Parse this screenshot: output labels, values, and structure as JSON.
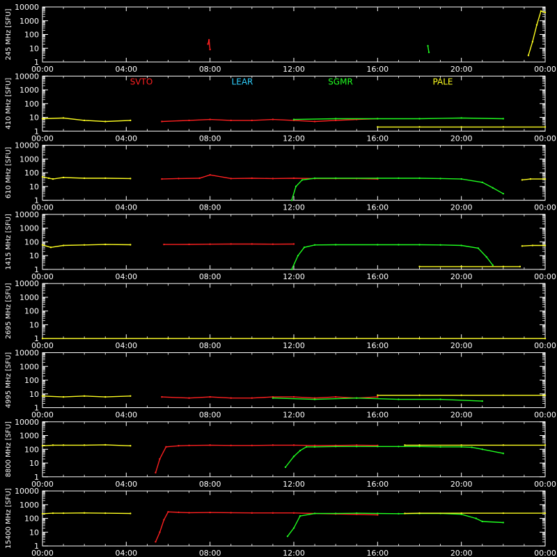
{
  "chart_data": {
    "type": "line",
    "x_ticks": [
      "00:00",
      "04:00",
      "08:00",
      "12:00",
      "16:00",
      "20:00",
      "00:00"
    ],
    "y_ticks": [
      "1",
      "10",
      "100",
      "1000",
      "10000"
    ],
    "y_scale": "log",
    "ylim": [
      1,
      10000
    ],
    "grid": false,
    "legend": {
      "placement": "top, inside panel 410 MHz",
      "entries": [
        {
          "name": "SVTO",
          "color": "#ff2020"
        },
        {
          "name": "LEAR",
          "color": "#30d0ff"
        },
        {
          "name": "SGMR",
          "color": "#20ff20"
        },
        {
          "name": "PALE",
          "color": "#ffff20"
        }
      ]
    },
    "panels": [
      {
        "ylabel": "245 MHz [SFU]",
        "series": [
          {
            "name": "PALE",
            "color": "#ffff20",
            "x": [
              23.2,
              23.4,
              23.6,
              23.8,
              24.0
            ],
            "y": [
              3,
              30,
              500,
              5000,
              4000
            ]
          },
          {
            "name": "SVTO",
            "color": "#ff2020",
            "x": [
              7.9,
              7.95,
              8.0
            ],
            "y": [
              20,
              40,
              8
            ]
          },
          {
            "name": "SGMR",
            "color": "#20ff20",
            "x": [
              18.4,
              18.45
            ],
            "y": [
              15,
              5
            ]
          }
        ]
      },
      {
        "ylabel": "410 MHz [SFU]",
        "series": [
          {
            "name": "PALE",
            "color": "#ffff20",
            "x": [
              0.0,
              1.0,
              2.0,
              3.0,
              4.2
            ],
            "y": [
              8,
              9,
              6,
              5,
              6
            ]
          },
          {
            "name": "SVTO",
            "color": "#ff2020",
            "x": [
              5.7,
              7.0,
              8.0,
              9.0,
              10.0,
              11.0,
              12.0,
              13.0,
              14.0,
              15.0,
              16.0
            ],
            "y": [
              5,
              6,
              7,
              6,
              6,
              7,
              6,
              5,
              6,
              7,
              8
            ]
          },
          {
            "name": "SGMR",
            "color": "#20ff20",
            "x": [
              12.0,
              14.0,
              16.0,
              18.0,
              20.0,
              22.0
            ],
            "y": [
              7,
              8,
              8,
              8,
              9,
              8
            ]
          },
          {
            "name": "PALE",
            "color": "#ffff20",
            "x": [
              16.0,
              18.0,
              20.0,
              22.0,
              24.0
            ],
            "y": [
              2,
              2,
              2,
              2,
              2
            ]
          }
        ]
      },
      {
        "ylabel": "610 MHz [SFU]",
        "series": [
          {
            "name": "PALE",
            "color": "#ffff20",
            "x": [
              0.0,
              0.3,
              0.5,
              1.0,
              2.0,
              3.0,
              4.2
            ],
            "y": [
              50,
              40,
              35,
              45,
              40,
              40,
              38
            ]
          },
          {
            "name": "SVTO",
            "color": "#ff2020",
            "x": [
              5.7,
              6.5,
              7.5,
              8.0,
              9.0,
              10.0,
              11.0,
              12.0,
              13.0,
              14.0,
              15.0,
              16.0
            ],
            "y": [
              35,
              38,
              40,
              70,
              38,
              40,
              38,
              40,
              38,
              38,
              38,
              35
            ]
          },
          {
            "name": "SGMR",
            "color": "#20ff20",
            "x": [
              11.9,
              12.1,
              12.4,
              13.0,
              14.0,
              16.0,
              17.0,
              18.0,
              19.0,
              20.0,
              21.0,
              21.5,
              22.0
            ],
            "y": [
              1,
              10,
              30,
              40,
              40,
              40,
              40,
              40,
              38,
              35,
              20,
              8,
              3
            ]
          },
          {
            "name": "PALE",
            "color": "#ffff20",
            "x": [
              22.9,
              23.3,
              24.0
            ],
            "y": [
              30,
              35,
              35
            ]
          }
        ]
      },
      {
        "ylabel": "1415 MHz [SFU]",
        "series": [
          {
            "name": "PALE",
            "color": "#ffff20",
            "x": [
              0.0,
              0.4,
              1.0,
              2.0,
              3.0,
              4.2
            ],
            "y": [
              60,
              40,
              55,
              60,
              65,
              62
            ]
          },
          {
            "name": "SVTO",
            "color": "#ff2020",
            "x": [
              5.8,
              7.0,
              8.0,
              9.0,
              10.0,
              11.0,
              12.0
            ],
            "y": [
              65,
              66,
              68,
              70,
              70,
              68,
              70
            ]
          },
          {
            "name": "SGMR",
            "color": "#20ff20",
            "x": [
              11.9,
              12.2,
              12.5,
              13.0,
              14.0,
              16.0,
              17.0,
              18.0,
              19.0,
              20.0,
              20.8,
              21.2,
              21.5
            ],
            "y": [
              1,
              10,
              40,
              60,
              62,
              62,
              62,
              62,
              60,
              55,
              35,
              8,
              2
            ]
          },
          {
            "name": "PALE",
            "color": "#ffff20",
            "x": [
              18.0,
              20.0,
              22.0,
              22.8
            ],
            "y": [
              1.6,
              1.6,
              1.6,
              1.6
            ]
          },
          {
            "name": "PALE",
            "color": "#ffff20",
            "x": [
              22.9,
              23.4,
              24.0
            ],
            "y": [
              50,
              55,
              55
            ]
          }
        ]
      },
      {
        "ylabel": "2695 MHz [SFU]",
        "series": [
          {
            "name": "PALE",
            "color": "#ffff20",
            "x": [
              0.0,
              6.0,
              12.0,
              18.0,
              24.0
            ],
            "y": [
              1,
              1,
              1,
              1,
              1
            ]
          }
        ]
      },
      {
        "ylabel": "4995 MHz [SFU]",
        "series": [
          {
            "name": "PALE",
            "color": "#ffff20",
            "x": [
              0.0,
              1.0,
              2.0,
              3.0,
              4.2
            ],
            "y": [
              7,
              6,
              7,
              6,
              7
            ]
          },
          {
            "name": "SVTO",
            "color": "#ff2020",
            "x": [
              5.7,
              7.0,
              8.0,
              9.0,
              10.0,
              11.0,
              12.0,
              13.0,
              14.0,
              15.0,
              16.0
            ],
            "y": [
              6,
              5,
              6,
              5,
              5,
              6,
              6,
              5,
              6,
              5,
              6
            ]
          },
          {
            "name": "SGMR",
            "color": "#20ff20",
            "x": [
              11.0,
              13.0,
              15.0,
              17.0,
              19.0,
              21.0
            ],
            "y": [
              5,
              4,
              5,
              4,
              4,
              3
            ]
          },
          {
            "name": "PALE",
            "color": "#ffff20",
            "x": [
              16.0,
              18.0,
              20.0,
              22.0,
              24.0
            ],
            "y": [
              8,
              8,
              8,
              8,
              8
            ]
          }
        ]
      },
      {
        "ylabel": "8800 MHz [SFU]",
        "series": [
          {
            "name": "PALE",
            "color": "#ffff20",
            "x": [
              0.0,
              0.5,
              1.0,
              2.0,
              3.0,
              4.2
            ],
            "y": [
              180,
              200,
              200,
              200,
              210,
              180
            ]
          },
          {
            "name": "SVTO",
            "color": "#ff2020",
            "x": [
              5.4,
              5.6,
              5.9,
              6.5,
              7.0,
              8.0,
              9.0,
              10.0,
              11.0,
              12.0,
              13.0,
              14.0,
              15.0,
              16.0
            ],
            "y": [
              2,
              20,
              150,
              180,
              190,
              200,
              190,
              190,
              200,
              200,
              190,
              190,
              200,
              190
            ]
          },
          {
            "name": "SGMR",
            "color": "#20ff20",
            "x": [
              11.6,
              12.0,
              12.3,
              12.6,
              13.0,
              14.0,
              15.0,
              16.0,
              17.0,
              18.0,
              19.0,
              20.0,
              20.5,
              21.0,
              22.0
            ],
            "y": [
              5,
              30,
              80,
              150,
              150,
              160,
              160,
              160,
              160,
              160,
              150,
              150,
              140,
              100,
              50
            ]
          },
          {
            "name": "PALE",
            "color": "#ffff20",
            "x": [
              17.3,
              18.0,
              20.0,
              22.0,
              24.0
            ],
            "y": [
              200,
              200,
              200,
              200,
              200
            ]
          }
        ]
      },
      {
        "ylabel": "15400 MHz [SFU]",
        "series": [
          {
            "name": "PALE",
            "color": "#ffff20",
            "x": [
              0.0,
              0.5,
              1.0,
              2.0,
              3.0,
              4.2
            ],
            "y": [
              220,
              240,
              240,
              250,
              240,
              230
            ]
          },
          {
            "name": "SVTO",
            "color": "#ff2020",
            "x": [
              5.4,
              5.6,
              5.8,
              6.0,
              6.5,
              7.0,
              8.0,
              9.0,
              10.0,
              11.0,
              12.0,
              13.0,
              14.0,
              15.0,
              16.0
            ],
            "y": [
              2,
              10,
              80,
              300,
              280,
              260,
              270,
              260,
              250,
              250,
              250,
              230,
              210,
              200,
              180
            ]
          },
          {
            "name": "SGMR",
            "color": "#20ff20",
            "x": [
              11.7,
              12.0,
              12.3,
              13.0,
              14.0,
              15.0,
              16.0,
              17.0,
              18.0,
              19.0,
              20.0,
              20.7,
              21.0,
              22.0
            ],
            "y": [
              5,
              20,
              150,
              230,
              230,
              240,
              230,
              220,
              230,
              230,
              200,
              100,
              60,
              50
            ]
          },
          {
            "name": "PALE",
            "color": "#ffff20",
            "x": [
              17.3,
              18.0,
              20.0,
              22.0,
              24.0
            ],
            "y": [
              230,
              240,
              240,
              240,
              240
            ]
          }
        ]
      }
    ]
  }
}
